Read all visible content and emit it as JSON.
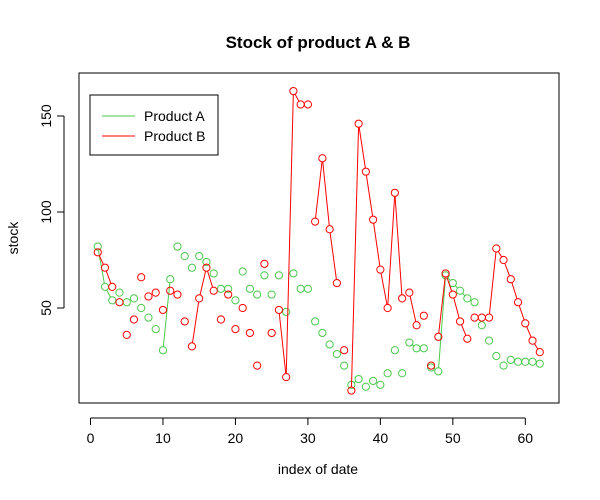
{
  "chart_data": {
    "type": "line",
    "title": "Stock of product A & B",
    "xlabel": "index of date",
    "ylabel": "stock",
    "xlim": [
      0,
      63
    ],
    "ylim": [
      3,
      166
    ],
    "x_ticks": [
      0,
      10,
      20,
      30,
      40,
      50,
      60
    ],
    "y_ticks": [
      50,
      100,
      150
    ],
    "legend_position": "top-left",
    "series": [
      {
        "name": "Product A",
        "color": "#4cc94c",
        "x": [
          1,
          2,
          3,
          4,
          5,
          6,
          7,
          8,
          9,
          10,
          11,
          12,
          13,
          14,
          15,
          16,
          17,
          18,
          19,
          20,
          21,
          22,
          23,
          24,
          25,
          26,
          27,
          28,
          29,
          30,
          31,
          32,
          33,
          34,
          35,
          36,
          37,
          38,
          39,
          40,
          41,
          42,
          43,
          44,
          45,
          46,
          47,
          48,
          49,
          50,
          51,
          52,
          53,
          54,
          55,
          56,
          57,
          58,
          59,
          60,
          61,
          62
        ],
        "values": [
          82,
          61,
          54,
          58,
          53,
          55,
          50,
          45,
          39,
          28,
          65,
          82,
          77,
          71,
          77,
          74,
          68,
          60,
          60,
          54,
          69,
          60,
          57,
          67,
          57,
          67,
          48,
          68,
          60,
          60,
          43,
          37,
          31,
          26,
          20,
          10,
          13,
          9,
          12,
          10,
          16,
          28,
          16,
          32,
          29,
          29,
          19,
          17,
          67,
          63,
          59,
          55,
          53,
          41,
          33,
          25,
          20,
          23,
          22,
          22,
          22,
          21
        ],
        "lines": [
          [
            1,
            3
          ],
          [
            10,
            11
          ],
          [
            36,
            37
          ],
          [
            44,
            45
          ],
          [
            48,
            53
          ]
        ]
      },
      {
        "name": "Product B",
        "color": "#ff0000",
        "x": [
          1,
          2,
          3,
          4,
          5,
          6,
          7,
          8,
          9,
          10,
          11,
          12,
          13,
          14,
          15,
          16,
          17,
          18,
          19,
          20,
          21,
          22,
          23,
          24,
          25,
          26,
          27,
          28,
          29,
          30,
          31,
          32,
          33,
          34,
          35,
          36,
          37,
          38,
          39,
          40,
          41,
          42,
          43,
          44,
          45,
          46,
          47,
          48,
          49,
          50,
          51,
          52,
          53,
          54,
          55,
          56,
          57,
          58,
          59,
          60,
          61,
          62
        ],
        "values": [
          79,
          71,
          61,
          53,
          36,
          44,
          66,
          56,
          58,
          49,
          59,
          57,
          43,
          30,
          55,
          71,
          59,
          44,
          57,
          39,
          50,
          37,
          20,
          73,
          37,
          49,
          14,
          163,
          156,
          156,
          95,
          128,
          91,
          63,
          28,
          7,
          146,
          121,
          96,
          70,
          50,
          110,
          55,
          58,
          41,
          46,
          20,
          35,
          68,
          57,
          43,
          34,
          45,
          45,
          45,
          81,
          75,
          65,
          53,
          42,
          33,
          27
        ],
        "lines": [
          [
            1,
            3
          ],
          [
            14,
            17
          ],
          [
            26,
            30
          ],
          [
            31,
            34
          ],
          [
            36,
            43
          ],
          [
            44,
            45
          ],
          [
            48,
            52
          ],
          [
            55,
            62
          ]
        ]
      }
    ]
  }
}
